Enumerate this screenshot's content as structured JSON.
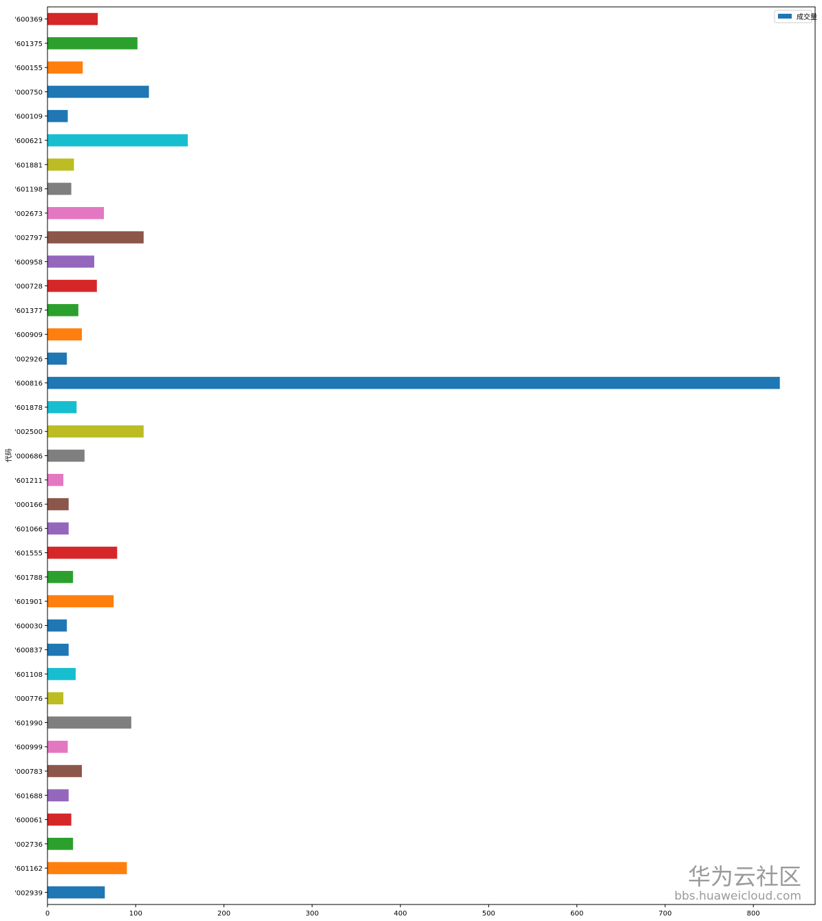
{
  "chart_data": {
    "type": "bar",
    "orientation": "horizontal",
    "title": "",
    "xlabel": "",
    "ylabel": "代码",
    "xlim": [
      0,
      870
    ],
    "xticks": [
      0,
      100,
      200,
      300,
      400,
      500,
      600,
      700,
      800
    ],
    "grid": false,
    "legend": {
      "position": "top-right",
      "entries": [
        "成交量"
      ]
    },
    "series": [
      {
        "name": "成交量",
        "categories": [
          "'600369",
          "'601375",
          "'600155",
          "'000750",
          "'600109",
          "'600621",
          "'601881",
          "'601198",
          "'002673",
          "'002797",
          "'600958",
          "'000728",
          "'601377",
          "'600909",
          "'002926",
          "'600816",
          "'601878",
          "'002500",
          "'000686",
          "'601211",
          "'000166",
          "'601066",
          "'601555",
          "'601788",
          "'601901",
          "'600030",
          "'600837",
          "'601108",
          "'000776",
          "'601990",
          "'600999",
          "'000783",
          "'601688",
          "'600061",
          "'002736",
          "'601162",
          "'002939"
        ],
        "values": [
          57,
          102,
          40,
          115,
          23,
          159,
          30,
          27,
          64,
          109,
          53,
          56,
          35,
          39,
          22,
          830,
          33,
          109,
          42,
          18,
          24,
          24,
          79,
          29,
          75,
          22,
          24,
          32,
          18,
          95,
          23,
          39,
          24,
          27,
          29,
          90,
          65
        ],
        "colors": [
          "#d62728",
          "#2ca02c",
          "#ff7f0e",
          "#1f77b4",
          "#1f77b4",
          "#17becf",
          "#bcbd22",
          "#7f7f7f",
          "#e377c2",
          "#8c564b",
          "#9467bd",
          "#d62728",
          "#2ca02c",
          "#ff7f0e",
          "#1f77b4",
          "#1f77b4",
          "#17becf",
          "#bcbd22",
          "#7f7f7f",
          "#e377c2",
          "#8c564b",
          "#9467bd",
          "#d62728",
          "#2ca02c",
          "#ff7f0e",
          "#1f77b4",
          "#1f77b4",
          "#17becf",
          "#bcbd22",
          "#7f7f7f",
          "#e377c2",
          "#8c564b",
          "#9467bd",
          "#d62728",
          "#2ca02c",
          "#ff7f0e",
          "#1f77b4"
        ]
      }
    ],
    "legend_color": "#1f77b4"
  },
  "watermark": {
    "title": "华为云社区",
    "url": "bbs.huaweicloud.com"
  }
}
